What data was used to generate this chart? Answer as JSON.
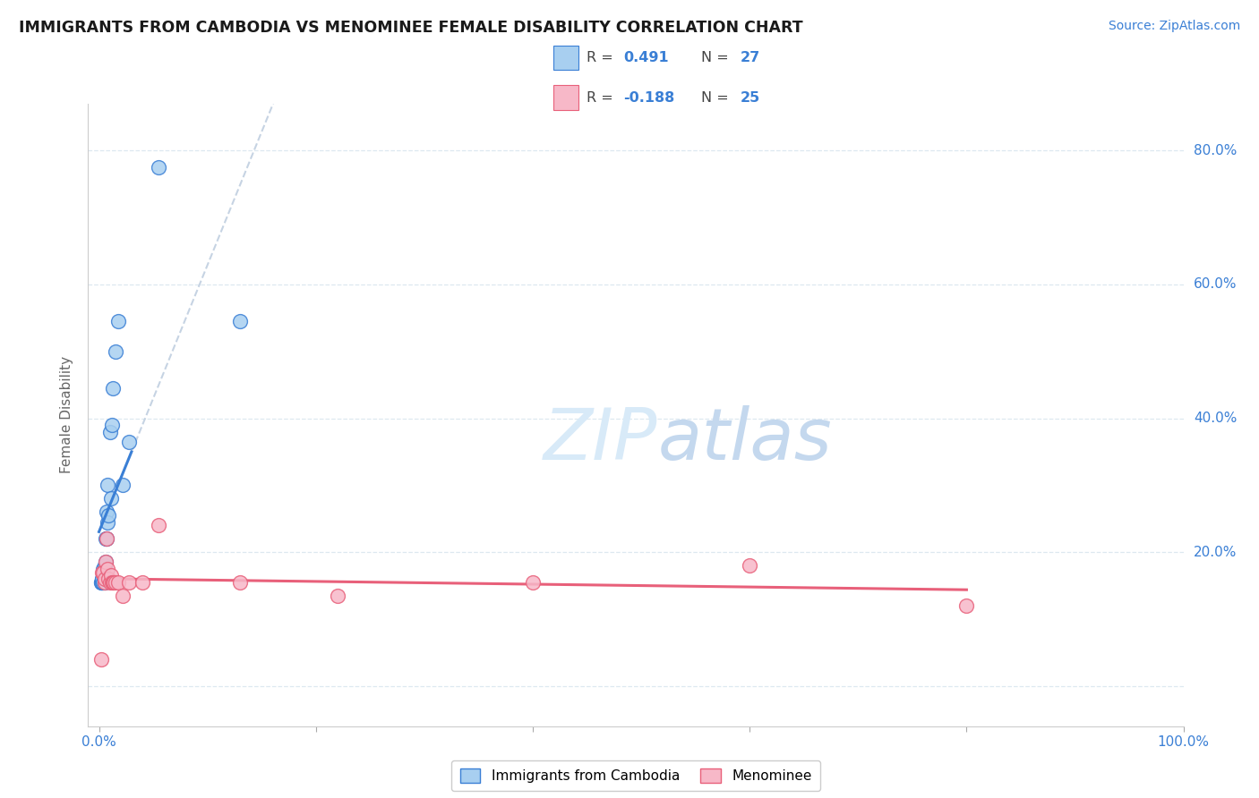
{
  "title": "IMMIGRANTS FROM CAMBODIA VS MENOMINEE FEMALE DISABILITY CORRELATION CHART",
  "source": "Source: ZipAtlas.com",
  "ylabel": "Female Disability",
  "xlim": [
    -0.01,
    1.0
  ],
  "ylim": [
    -0.06,
    0.87
  ],
  "xtick_positions": [
    0.0,
    0.2,
    0.4,
    0.6,
    0.8,
    1.0
  ],
  "xtick_labels": [
    "0.0%",
    "",
    "",
    "",
    "",
    "100.0%"
  ],
  "ytick_vals": [
    0.0,
    0.2,
    0.4,
    0.6,
    0.8
  ],
  "ytick_labels_right": [
    "",
    "20.0%",
    "40.0%",
    "60.0%",
    "80.0%"
  ],
  "ytick_vals_right": [
    0.0,
    0.2,
    0.4,
    0.6,
    0.8
  ],
  "R_cambodia": 0.491,
  "N_cambodia": 27,
  "R_menominee": -0.188,
  "N_menominee": 25,
  "cambodia_x": [
    0.002,
    0.002,
    0.003,
    0.003,
    0.003,
    0.004,
    0.004,
    0.005,
    0.005,
    0.005,
    0.006,
    0.006,
    0.007,
    0.007,
    0.008,
    0.008,
    0.009,
    0.01,
    0.011,
    0.012,
    0.013,
    0.015,
    0.018,
    0.022,
    0.028,
    0.055,
    0.13
  ],
  "cambodia_y": [
    0.155,
    0.155,
    0.155,
    0.16,
    0.16,
    0.155,
    0.175,
    0.155,
    0.16,
    0.18,
    0.185,
    0.22,
    0.22,
    0.26,
    0.245,
    0.3,
    0.255,
    0.38,
    0.28,
    0.39,
    0.445,
    0.5,
    0.545,
    0.3,
    0.365,
    0.775,
    0.545
  ],
  "menominee_x": [
    0.002,
    0.003,
    0.004,
    0.005,
    0.005,
    0.006,
    0.007,
    0.008,
    0.009,
    0.01,
    0.011,
    0.012,
    0.013,
    0.014,
    0.015,
    0.018,
    0.022,
    0.028,
    0.04,
    0.055,
    0.13,
    0.22,
    0.4,
    0.6,
    0.8
  ],
  "menominee_y": [
    0.04,
    0.17,
    0.17,
    0.155,
    0.16,
    0.185,
    0.22,
    0.175,
    0.16,
    0.155,
    0.165,
    0.155,
    0.155,
    0.155,
    0.155,
    0.155,
    0.135,
    0.155,
    0.155,
    0.24,
    0.155,
    0.135,
    0.155,
    0.18,
    0.12
  ],
  "color_cambodia": "#a8cff0",
  "color_menominee": "#f7b8c8",
  "color_line_cambodia": "#3a7fd5",
  "color_line_menominee": "#e8607a",
  "color_dashed_line": "#c0cfe0",
  "background_color": "#ffffff",
  "grid_color": "#dde8f0",
  "legend_R_color": "#3a7fd5",
  "legend_text_color": "#444444"
}
